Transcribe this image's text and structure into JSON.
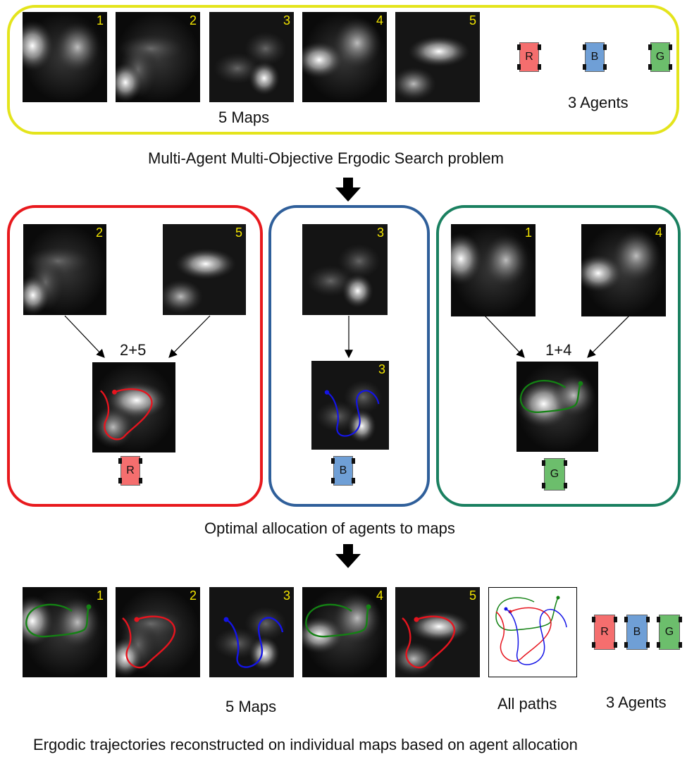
{
  "top": {
    "map_numbers": [
      "1",
      "2",
      "3",
      "4",
      "5"
    ],
    "maps_label": "5 Maps",
    "agents_label": "3 Agents",
    "agent_letters": [
      "R",
      "B",
      "G"
    ],
    "caption": "Multi-Agent Multi-Objective Ergodic Search problem"
  },
  "middle": {
    "red": {
      "map_a": "2",
      "map_b": "5",
      "combined_label": "2+5",
      "agent": "R"
    },
    "blue": {
      "map_a": "3",
      "combined_label": "3",
      "agent": "B"
    },
    "green": {
      "map_a": "1",
      "map_b": "4",
      "combined_label": "1+4",
      "agent": "G"
    },
    "caption": "Optimal allocation of agents to maps"
  },
  "bottom": {
    "map_numbers": [
      "1",
      "2",
      "3",
      "4",
      "5"
    ],
    "maps_label": "5 Maps",
    "all_paths_label": "All paths",
    "agents_label": "3 Agents",
    "agent_letters": [
      "R",
      "B",
      "G"
    ],
    "caption": "Ergodic trajectories reconstructed on individual maps based on agent allocation"
  },
  "colors": {
    "yellow_box": "#e4e41c",
    "red_box": "#e8191d",
    "blue_box": "#2f5f9a",
    "green_box": "#1a8060",
    "agent_red": "#f56e6e",
    "agent_blue": "#6f9fd6",
    "agent_green": "#6cbe6c",
    "map_number": "#f2e400",
    "traj_red": "#e6141e",
    "traj_blue": "#1414e6",
    "traj_green": "#148214"
  }
}
